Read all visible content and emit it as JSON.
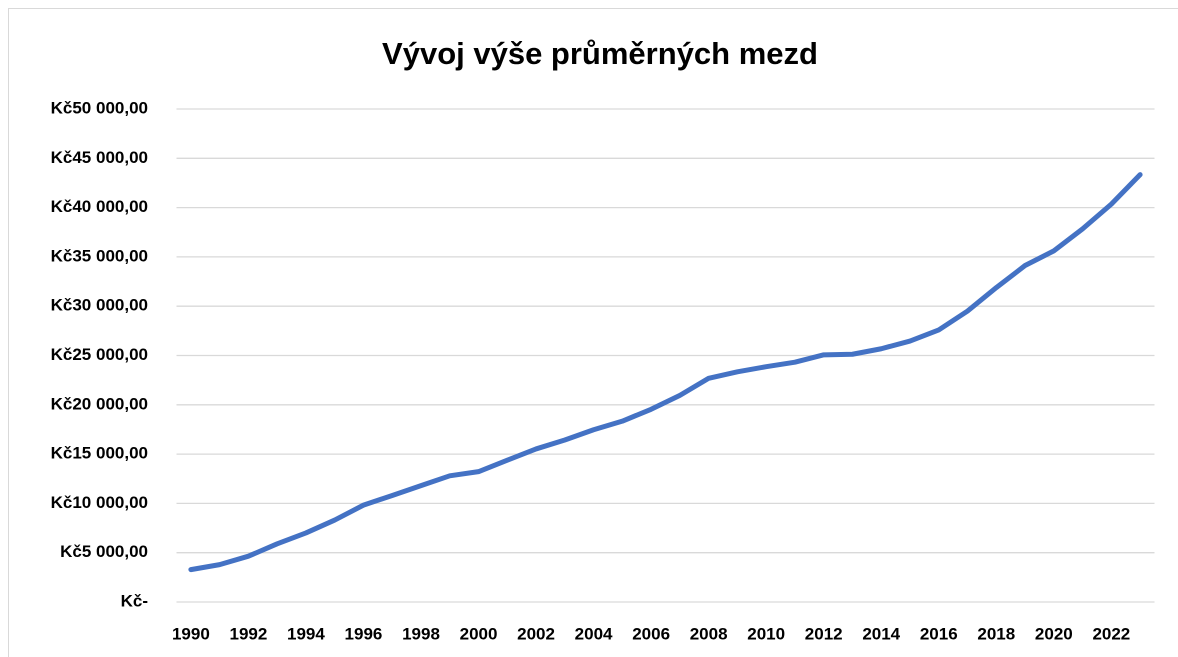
{
  "chart_data": {
    "type": "line",
    "title": "Vývoj výše průměrných mezd",
    "x": [
      1990,
      1991,
      1992,
      1993,
      1994,
      1995,
      1996,
      1997,
      1998,
      1999,
      2000,
      2001,
      2002,
      2003,
      2004,
      2005,
      2006,
      2007,
      2008,
      2009,
      2010,
      2011,
      2012,
      2013,
      2014,
      2015,
      2016,
      2017,
      2018,
      2019,
      2020,
      2021,
      2022,
      2023
    ],
    "values": [
      3286,
      3792,
      4644,
      5904,
      7004,
      8307,
      9825,
      10802,
      11801,
      12797,
      13219,
      14378,
      15524,
      16430,
      17466,
      18344,
      19546,
      20957,
      22691,
      23344,
      23864,
      24319,
      25067,
      25128,
      25686,
      26467,
      27589,
      29504,
      31885,
      34125,
      35611,
      37839,
      40353,
      43341
    ],
    "color": "#4472c4",
    "xlim": [
      1989.5,
      2023.5
    ],
    "xticks": [
      1990,
      1992,
      1994,
      1996,
      1998,
      2000,
      2002,
      2004,
      2006,
      2008,
      2010,
      2012,
      2014,
      2016,
      2018,
      2020,
      2022
    ],
    "ylim": [
      0,
      50000
    ],
    "yticks": [
      {
        "value": 0,
        "label": "Kč-"
      },
      {
        "value": 5000,
        "label": "Kč5 000,00"
      },
      {
        "value": 10000,
        "label": "Kč10 000,00"
      },
      {
        "value": 15000,
        "label": "Kč15 000,00"
      },
      {
        "value": 20000,
        "label": "Kč20 000,00"
      },
      {
        "value": 25000,
        "label": "Kč25 000,00"
      },
      {
        "value": 30000,
        "label": "Kč30 000,00"
      },
      {
        "value": 35000,
        "label": "Kč35 000,00"
      },
      {
        "value": 40000,
        "label": "Kč40 000,00"
      },
      {
        "value": 45000,
        "label": "Kč45 000,00"
      },
      {
        "value": 50000,
        "label": "Kč50 000,00"
      }
    ],
    "grid": true
  }
}
